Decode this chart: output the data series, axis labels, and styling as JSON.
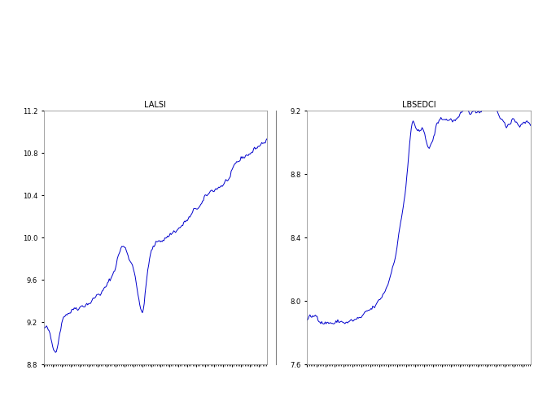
{
  "title1": "LALSI",
  "title2": "LBSEDCI",
  "ylim1": [
    8.8,
    11.2
  ],
  "ylim2": [
    7.6,
    9.0
  ],
  "yticks1": [
    8.8,
    9.2,
    9.6,
    10.0,
    10.4,
    10.8,
    11.2
  ],
  "yticks2": [
    7.6,
    8.0,
    8.4,
    8.8,
    9.2
  ],
  "line_color": "#0000CC",
  "background_color": "#ffffff",
  "n_points": 250
}
